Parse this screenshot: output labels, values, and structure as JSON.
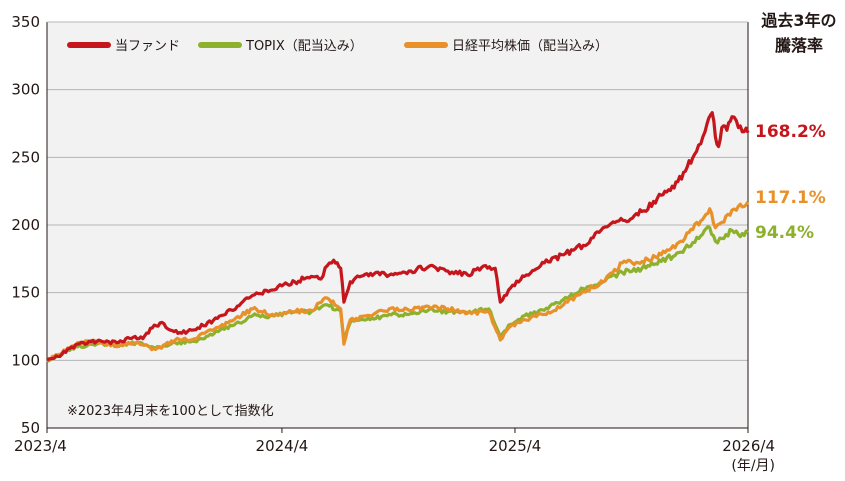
{
  "chart_data": {
    "type": "line",
    "title_lines": [
      "過去3年の",
      "騰落率"
    ],
    "xlabel": "",
    "ylabel": "",
    "ylim": [
      50,
      350
    ],
    "yticks": [
      50,
      100,
      150,
      200,
      250,
      300,
      350
    ],
    "xlim": [
      "2023-04-28",
      "2026-04-30"
    ],
    "xticks": [
      {
        "date": "2023-04-28",
        "label": "2023/4"
      },
      {
        "date": "2024-04-30",
        "label": "2024/4"
      },
      {
        "date": "2025-04-30",
        "label": "2025/4"
      },
      {
        "date": "2026-04-30",
        "label": "2026/4"
      }
    ],
    "x_unit_label": "(年/月)",
    "grid": true,
    "legend_position": "top-left",
    "note": "※2023年4月末を100として指数化",
    "series": [
      {
        "name": "当ファンド",
        "color": "#c4161c",
        "end_label": "168.2%",
        "points": [
          [
            "2023-04-28",
            100
          ],
          [
            "2023-05-15",
            103
          ],
          [
            "2023-06-15",
            112
          ],
          [
            "2023-07-15",
            114
          ],
          [
            "2023-08-15",
            113
          ],
          [
            "2023-09-10",
            117
          ],
          [
            "2023-09-25",
            116
          ],
          [
            "2023-10-10",
            124
          ],
          [
            "2023-10-25",
            128
          ],
          [
            "2023-11-10",
            122
          ],
          [
            "2023-11-25",
            120
          ],
          [
            "2023-12-20",
            124
          ],
          [
            "2024-01-20",
            131
          ],
          [
            "2024-02-20",
            140
          ],
          [
            "2024-03-15",
            148
          ],
          [
            "2024-04-15",
            152
          ],
          [
            "2024-04-30",
            155
          ],
          [
            "2024-05-20",
            158
          ],
          [
            "2024-06-15",
            162
          ],
          [
            "2024-06-30",
            160
          ],
          [
            "2024-07-10",
            170
          ],
          [
            "2024-07-20",
            174
          ],
          [
            "2024-07-31",
            168
          ],
          [
            "2024-08-05",
            143
          ],
          [
            "2024-08-15",
            158
          ],
          [
            "2024-09-10",
            164
          ],
          [
            "2024-10-15",
            163
          ],
          [
            "2024-11-15",
            166
          ],
          [
            "2024-12-15",
            169
          ],
          [
            "2025-01-15",
            166
          ],
          [
            "2025-02-15",
            163
          ],
          [
            "2025-03-15",
            170
          ],
          [
            "2025-03-30",
            168
          ],
          [
            "2025-04-07",
            143
          ],
          [
            "2025-04-20",
            152
          ],
          [
            "2025-05-15",
            162
          ],
          [
            "2025-06-15",
            172
          ],
          [
            "2025-07-15",
            178
          ],
          [
            "2025-08-15",
            185
          ],
          [
            "2025-09-15",
            198
          ],
          [
            "2025-10-10",
            203
          ],
          [
            "2025-10-31",
            205
          ],
          [
            "2025-11-15",
            210
          ],
          [
            "2025-12-15",
            222
          ],
          [
            "2026-01-10",
            232
          ],
          [
            "2026-01-25",
            243
          ],
          [
            "2026-02-05",
            252
          ],
          [
            "2026-02-15",
            260
          ],
          [
            "2026-02-25",
            275
          ],
          [
            "2026-03-05",
            283
          ],
          [
            "2026-03-10",
            265
          ],
          [
            "2026-03-15",
            258
          ],
          [
            "2026-03-20",
            272
          ],
          [
            "2026-03-28",
            270
          ],
          [
            "2026-04-05",
            280
          ],
          [
            "2026-04-15",
            272
          ],
          [
            "2026-04-30",
            268.2
          ]
        ]
      },
      {
        "name": "TOPIX（配当込み）",
        "color": "#8db12c",
        "end_label": "94.4%",
        "points": [
          [
            "2023-04-28",
            100
          ],
          [
            "2023-05-15",
            103
          ],
          [
            "2023-06-15",
            110
          ],
          [
            "2023-07-15",
            112
          ],
          [
            "2023-08-15",
            111
          ],
          [
            "2023-09-15",
            113
          ],
          [
            "2023-10-15",
            109
          ],
          [
            "2023-11-15",
            113
          ],
          [
            "2023-12-15",
            114
          ],
          [
            "2024-01-15",
            120
          ],
          [
            "2024-02-15",
            126
          ],
          [
            "2024-03-15",
            133
          ],
          [
            "2024-04-15",
            133
          ],
          [
            "2024-05-15",
            135
          ],
          [
            "2024-06-15",
            136
          ],
          [
            "2024-07-10",
            141
          ],
          [
            "2024-07-31",
            136
          ],
          [
            "2024-08-05",
            115
          ],
          [
            "2024-08-15",
            128
          ],
          [
            "2024-09-15",
            130
          ],
          [
            "2024-10-15",
            134
          ],
          [
            "2024-11-15",
            134
          ],
          [
            "2024-12-15",
            137
          ],
          [
            "2025-01-15",
            136
          ],
          [
            "2025-02-15",
            135
          ],
          [
            "2025-03-20",
            138
          ],
          [
            "2025-04-07",
            117
          ],
          [
            "2025-04-20",
            126
          ],
          [
            "2025-05-15",
            133
          ],
          [
            "2025-06-15",
            137
          ],
          [
            "2025-07-15",
            145
          ],
          [
            "2025-08-15",
            153
          ],
          [
            "2025-09-15",
            158
          ],
          [
            "2025-10-15",
            165
          ],
          [
            "2025-11-15",
            168
          ],
          [
            "2025-12-15",
            173
          ],
          [
            "2026-01-15",
            180
          ],
          [
            "2026-02-15",
            192
          ],
          [
            "2026-03-01",
            198
          ],
          [
            "2026-03-10",
            188
          ],
          [
            "2026-03-20",
            190
          ],
          [
            "2026-04-05",
            196
          ],
          [
            "2026-04-15",
            193
          ],
          [
            "2026-04-30",
            194.4
          ]
        ]
      },
      {
        "name": "日経平均株価（配当込み）",
        "color": "#e8912a",
        "end_label": "117.1%",
        "points": [
          [
            "2023-04-28",
            100
          ],
          [
            "2023-05-15",
            104
          ],
          [
            "2023-06-15",
            113
          ],
          [
            "2023-07-15",
            114
          ],
          [
            "2023-08-15",
            110
          ],
          [
            "2023-09-15",
            113
          ],
          [
            "2023-10-15",
            108
          ],
          [
            "2023-11-15",
            115
          ],
          [
            "2023-12-15",
            116
          ],
          [
            "2024-01-15",
            123
          ],
          [
            "2024-02-15",
            130
          ],
          [
            "2024-03-15",
            138
          ],
          [
            "2024-04-15",
            134
          ],
          [
            "2024-05-15",
            136
          ],
          [
            "2024-06-15",
            137
          ],
          [
            "2024-07-10",
            146
          ],
          [
            "2024-07-31",
            138
          ],
          [
            "2024-08-05",
            112
          ],
          [
            "2024-08-15",
            130
          ],
          [
            "2024-09-15",
            133
          ],
          [
            "2024-10-15",
            138
          ],
          [
            "2024-11-15",
            137
          ],
          [
            "2024-12-15",
            140
          ],
          [
            "2025-01-15",
            138
          ],
          [
            "2025-02-15",
            135
          ],
          [
            "2025-03-20",
            136
          ],
          [
            "2025-04-07",
            115
          ],
          [
            "2025-04-20",
            124
          ],
          [
            "2025-05-15",
            130
          ],
          [
            "2025-06-15",
            134
          ],
          [
            "2025-07-15",
            141
          ],
          [
            "2025-08-15",
            151
          ],
          [
            "2025-09-15",
            158
          ],
          [
            "2025-10-15",
            172
          ],
          [
            "2025-11-15",
            173
          ],
          [
            "2025-12-15",
            178
          ],
          [
            "2026-01-15",
            188
          ],
          [
            "2026-02-15",
            203
          ],
          [
            "2026-03-01",
            212
          ],
          [
            "2026-03-10",
            198
          ],
          [
            "2026-03-20",
            202
          ],
          [
            "2026-04-05",
            211
          ],
          [
            "2026-04-15",
            214
          ],
          [
            "2026-04-30",
            217.1
          ]
        ]
      }
    ]
  }
}
